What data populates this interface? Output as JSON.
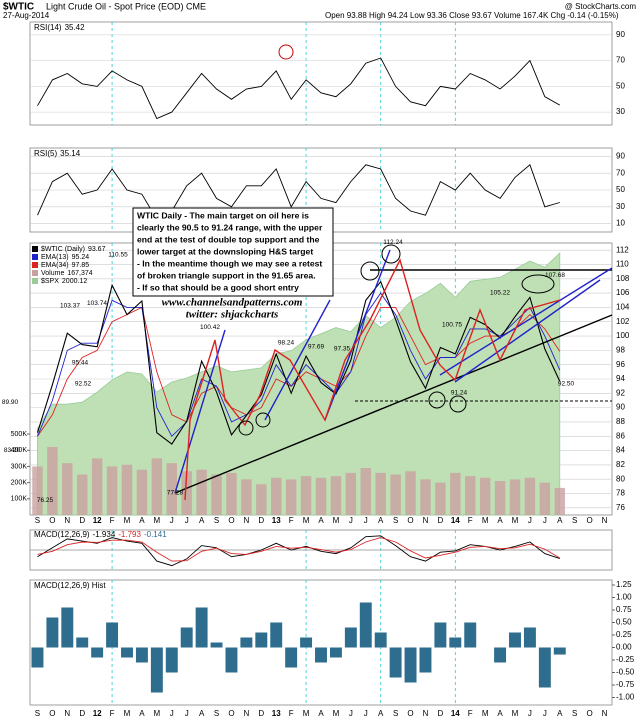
{
  "header": {
    "symbol": "$WTIC",
    "name": "Light Crude Oil - Spot Price (EOD) CME",
    "date": "27-Aug-2014",
    "quote": "Open 93.88 High 94.24 Low 93.36 Close 93.67 Volume 167.4K Chg -0.14 (-0.15%)",
    "source": "@ StockCharts.com"
  },
  "note": [
    "WTIC Daily - The main target on oil here is",
    "clearly the 90.5 to 91.24 range, with the upper",
    "end at the test of double top support and the",
    "lower target at the downsloping H&S target",
    "- In the meantime though we may see a retest",
    "of broken triangle support in the 91.65 area.",
    "- If so that should be a good short entry"
  ],
  "watermark": [
    "www.channelsandpatterns.com",
    "twitter: shjackcharts"
  ],
  "chart_data": [
    {
      "type": "line",
      "title": "RSI(14)",
      "color": "#000",
      "ylim": [
        20,
        100
      ],
      "yticks": [
        30,
        50,
        70,
        90
      ],
      "grid": true,
      "values": [
        35,
        55,
        60,
        52,
        50,
        62,
        55,
        50,
        25,
        30,
        45,
        60,
        48,
        40,
        48,
        50,
        62,
        40,
        55,
        45,
        42,
        52,
        68,
        72,
        50,
        38,
        35,
        50,
        48,
        60,
        55,
        48,
        58,
        70,
        42,
        35.42,
        null,
        null,
        null
      ]
    },
    {
      "type": "line",
      "title": "RSI(5)",
      "color": "#000",
      "ylim": [
        0,
        100
      ],
      "yticks": [
        10,
        30,
        50,
        70,
        90
      ],
      "grid": true,
      "values": [
        20,
        60,
        70,
        45,
        50,
        75,
        50,
        45,
        15,
        25,
        55,
        70,
        40,
        30,
        55,
        55,
        75,
        30,
        60,
        40,
        35,
        60,
        80,
        75,
        40,
        25,
        20,
        60,
        50,
        70,
        50,
        40,
        65,
        80,
        30,
        35.14,
        null,
        null,
        null
      ]
    },
    {
      "type": "line",
      "title": "$WTIC (Daily)",
      "ylim": [
        75,
        113
      ],
      "yticks": [
        76,
        78,
        80,
        82,
        84,
        86,
        88,
        90,
        92,
        94,
        96,
        98,
        100,
        102,
        104,
        106,
        108,
        110,
        112
      ],
      "grid": true,
      "y2lim": [
        0,
        1680000
      ],
      "y2ticks": [
        {
          "value": 100000,
          "label": "100K"
        },
        {
          "value": 200000,
          "label": "200K"
        },
        {
          "value": 300000,
          "label": "300K"
        },
        {
          "value": 400000,
          "label": "400K"
        },
        {
          "value": 500000,
          "label": "500K"
        }
      ],
      "y3lim": [
        700,
        2050
      ],
      "categories": [
        "S",
        "O",
        "N",
        "D",
        "12",
        "F",
        "M",
        "A",
        "M",
        "J",
        "J",
        "A",
        "S",
        "O",
        "N",
        "D",
        "13",
        "F",
        "M",
        "A",
        "M",
        "J",
        "J",
        "A",
        "S",
        "O",
        "N",
        "D",
        "14",
        "F",
        "M",
        "A",
        "M",
        "J",
        "J",
        "A",
        "S",
        "O",
        "N"
      ],
      "series": [
        {
          "name": "$SPX",
          "color": "#9c9",
          "type": "area",
          "axis": "y3",
          "values": [
            1130,
            1250,
            1250,
            1260,
            1310,
            1370,
            1410,
            1400,
            1310,
            1360,
            1380,
            1410,
            1440,
            1410,
            1420,
            1430,
            1500,
            1515,
            1570,
            1600,
            1630,
            1610,
            1690,
            1630,
            1680,
            1760,
            1800,
            1850,
            1780,
            1860,
            1870,
            1880,
            1920,
            1960,
            1930,
            2000.12,
            null,
            null,
            null
          ]
        },
        {
          "name": "Volume",
          "color": "#c9a0a0",
          "type": "bar",
          "axis": "y2",
          "values": [
            300000,
            420000,
            320000,
            250000,
            350000,
            300000,
            310000,
            280000,
            350000,
            320000,
            270000,
            280000,
            250000,
            260000,
            220000,
            190000,
            230000,
            220000,
            240000,
            230000,
            240000,
            260000,
            290000,
            260000,
            250000,
            270000,
            220000,
            200000,
            260000,
            240000,
            230000,
            210000,
            220000,
            230000,
            200000,
            167374,
            null,
            null,
            null
          ],
          "value_labels": [
            null,
            null,
            null,
            null,
            null,
            null,
            null,
            null,
            null,
            null,
            null,
            null,
            null,
            null,
            null,
            null,
            null,
            null,
            null,
            null,
            null,
            null,
            null,
            null,
            null,
            null,
            null,
            null,
            null,
            null,
            null,
            null,
            null,
            null,
            null,
            "167,374",
            null,
            null,
            null
          ]
        },
        {
          "name": "EMA(34)",
          "color": "#d22",
          "type": "line",
          "values": [
            86,
            89,
            94,
            97,
            98,
            102,
            103,
            104,
            95,
            89,
            88,
            92,
            93,
            90,
            89,
            90,
            94,
            93,
            95,
            94,
            93,
            95,
            100,
            104,
            104,
            100,
            96,
            97,
            97,
            99,
            100,
            100,
            101,
            103,
            101,
            97.85,
            null,
            null,
            null
          ]
        },
        {
          "name": "EMA(13)",
          "color": "#22c",
          "type": "line",
          "values": [
            86,
            91,
            98,
            99,
            99,
            105,
            104,
            104,
            90,
            86,
            88,
            94,
            93,
            88,
            89,
            91,
            96,
            93,
            96,
            94,
            92,
            95,
            103,
            106,
            103,
            98,
            94,
            97,
            97,
            101,
            101,
            100,
            102,
            104,
            100,
            95.24,
            null,
            null,
            null
          ]
        },
        {
          "name": "$WTIC (Daily)",
          "color": "#000",
          "type": "line",
          "values": [
            86.5,
            93.2,
            100.4,
            98.8,
            98.5,
            107.1,
            103,
            104.9,
            86.5,
            84.9,
            88.1,
            96.5,
            92.2,
            86.2,
            88.9,
            91.8,
            97.5,
            92,
            97.2,
            93.5,
            91.9,
            96.6,
            105,
            107.6,
            102.3,
            96.4,
            92.7,
            98.4,
            97.5,
            102.6,
            101.6,
            99.7,
            102.7,
            105.4,
            98.2,
            93.67,
            null,
            null,
            null
          ]
        }
      ],
      "price_labels": [
        110.55,
        103.37,
        103.74,
        95.44,
        92.52,
        {
          "value": 89.9,
          "label": "89.90"
        },
        {
          "value": 83.2,
          "label": "83.20"
        },
        76.25,
        77.28,
        100.42,
        98.24,
        97.69,
        97.35,
        112.24,
        105.22,
        107.68,
        100.75,
        91.24,
        {
          "value": 92.5,
          "label": "92.50"
        }
      ]
    },
    {
      "type": "line",
      "title": "MACD(12,26,9)",
      "ylim": [
        -4.5,
        4.5
      ],
      "series": [
        {
          "name": "MACD",
          "color": "#000",
          "values": [
            -1.5,
            0.5,
            2.5,
            2,
            1.5,
            2.8,
            2,
            1.5,
            -2.5,
            -3.5,
            -2,
            1,
            0.5,
            -1.5,
            -1,
            0,
            1.5,
            0,
            0.8,
            -0.3,
            -0.8,
            0.5,
            3,
            3.2,
            1,
            -1.5,
            -2.5,
            -0.5,
            -0.2,
            1.2,
            0.8,
            0,
            0.8,
            1.8,
            -0.8,
            -1.934,
            null,
            null,
            null
          ]
        },
        {
          "name": "Signal",
          "color": "#d22",
          "values": [
            -1,
            -0.3,
            1.2,
            1.8,
            1.7,
            2.2,
            2.2,
            1.8,
            -0.5,
            -2.5,
            -2.4,
            -0.3,
            0.4,
            -0.8,
            -1,
            -0.3,
            0.8,
            0.4,
            0.6,
            0.1,
            -0.5,
            0.1,
            1.8,
            2.8,
            1.8,
            -0.2,
            -1.8,
            -1.2,
            -0.5,
            0.6,
            0.8,
            0.3,
            0.5,
            1.3,
            0.2,
            -1.793,
            null,
            null,
            null
          ]
        }
      ]
    },
    {
      "type": "bar",
      "title": "MACD(12,26,9) Hist",
      "color": "#2e6d8e",
      "ylim": [
        -1.15,
        1.35
      ],
      "yticks": [
        {
          "value": 1.25,
          "label": "1.25"
        },
        {
          "value": 1,
          "label": "1.00"
        },
        {
          "value": 0.75,
          "label": "0.75"
        },
        {
          "value": 0.5,
          "label": "0.50"
        },
        {
          "value": 0.25,
          "label": "0.25"
        },
        {
          "value": 0,
          "label": "0.00"
        },
        {
          "value": -0.25,
          "label": "-0.25"
        },
        {
          "value": -0.5,
          "label": "-0.50"
        },
        {
          "value": -0.75,
          "label": "-0.75"
        },
        {
          "value": -1,
          "label": "-1.00"
        }
      ],
      "categories": [
        "S",
        "O",
        "N",
        "D",
        "12",
        "F",
        "M",
        "A",
        "M",
        "J",
        "J",
        "A",
        "S",
        "O",
        "N",
        "D",
        "13",
        "F",
        "M",
        "A",
        "M",
        "J",
        "J",
        "A",
        "S",
        "O",
        "N",
        "D",
        "14",
        "F",
        "M",
        "A",
        "M",
        "J",
        "J",
        "A",
        "S",
        "O",
        "N"
      ],
      "values": [
        -0.4,
        0.6,
        0.8,
        0.2,
        -0.2,
        0.5,
        -0.2,
        -0.3,
        -0.9,
        -0.5,
        0.4,
        0.8,
        0.1,
        -0.5,
        0.2,
        0.3,
        0.5,
        -0.4,
        0.2,
        -0.3,
        -0.2,
        0.4,
        0.9,
        0.3,
        -0.6,
        -0.7,
        -0.5,
        0.5,
        0.2,
        0.5,
        0,
        -0.3,
        0.3,
        0.4,
        -0.8,
        -0.141,
        null,
        null,
        null
      ]
    }
  ]
}
